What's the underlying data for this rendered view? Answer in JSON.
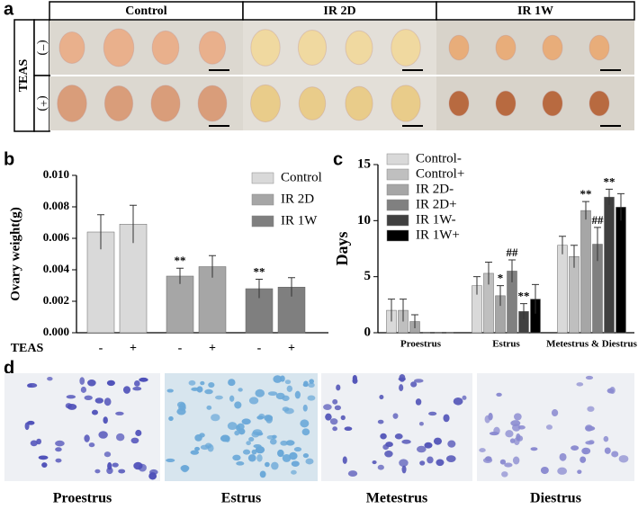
{
  "panels": {
    "a": {
      "label": "a",
      "columns": [
        "Control",
        "IR 2D",
        "IR 1W"
      ],
      "row_header": "TEAS",
      "rows": [
        "(−)",
        "(+)"
      ]
    },
    "b": {
      "label": "b"
    },
    "c": {
      "label": "c"
    },
    "d": {
      "label": "d",
      "images": [
        "Proestrus",
        "Estrus",
        "Metestrus",
        "Diestrus"
      ]
    }
  },
  "chart_data": [
    {
      "type": "bar",
      "y_label": "Ovary weight(g)",
      "x_label": "TEAS",
      "categories": [
        "-",
        "+"
      ],
      "ylim": [
        0,
        0.01
      ],
      "yticks": [
        {
          "value": 0,
          "label": "0.000"
        },
        {
          "value": 0.002,
          "label": "0.002"
        },
        {
          "value": 0.004,
          "label": "0.004"
        },
        {
          "value": 0.006,
          "label": "0.006"
        },
        {
          "value": 0.008,
          "label": "0.008"
        },
        {
          "value": 0.01,
          "label": "0.010"
        }
      ],
      "series": [
        {
          "name": "Control",
          "color": "#d9d9d9",
          "values": [
            0.0064,
            0.0069
          ],
          "errors": [
            0.0011,
            0.0012
          ],
          "annotations": [
            null,
            null
          ]
        },
        {
          "name": "IR 2D",
          "color": "#a6a6a6",
          "values": [
            0.0036,
            0.0042
          ],
          "errors": [
            0.0005,
            0.0007
          ],
          "annotations": [
            "**",
            null
          ]
        },
        {
          "name": "IR 1W",
          "color": "#7f7f7f",
          "values": [
            0.0028,
            0.0029
          ],
          "errors": [
            0.0006,
            0.0006
          ],
          "annotations": [
            "**",
            null
          ]
        }
      ]
    },
    {
      "type": "bar",
      "y_label": "Days",
      "categories": [
        "Proestrus",
        "Estrus",
        "Metestrus & Diestrus"
      ],
      "ylim": [
        0,
        15
      ],
      "yticks": [
        0,
        5,
        10,
        15
      ],
      "series": [
        {
          "name": "Control-",
          "color": "#d9d9d9",
          "values": [
            2,
            4.2,
            7.8
          ],
          "errors": [
            1,
            0.8,
            0.8
          ],
          "annotations": [
            null,
            null,
            null
          ]
        },
        {
          "name": "Control+",
          "color": "#bfbfbf",
          "values": [
            2,
            5.3,
            6.8
          ],
          "errors": [
            1,
            1,
            1
          ],
          "annotations": [
            null,
            null,
            null
          ]
        },
        {
          "name": "IR 2D-",
          "color": "#a6a6a6",
          "values": [
            1,
            3.3,
            10.9
          ],
          "errors": [
            0.6,
            0.9,
            0.8
          ],
          "annotations": [
            null,
            "*",
            "**"
          ]
        },
        {
          "name": "IR 2D+",
          "color": "#808080",
          "values": [
            0,
            5.5,
            7.9
          ],
          "errors": [
            0,
            1,
            1.5
          ],
          "annotations": [
            null,
            "##",
            "##"
          ]
        },
        {
          "name": "IR 1W-",
          "color": "#404040",
          "values": [
            0,
            1.9,
            12.1
          ],
          "errors": [
            0,
            0.7,
            0.7
          ],
          "annotations": [
            null,
            "**",
            "**"
          ]
        },
        {
          "name": "IR 1W+",
          "color": "#000000",
          "values": [
            0,
            3,
            11.2
          ],
          "errors": [
            0,
            1.3,
            1.2
          ],
          "annotations": [
            null,
            null,
            null
          ]
        }
      ]
    }
  ]
}
